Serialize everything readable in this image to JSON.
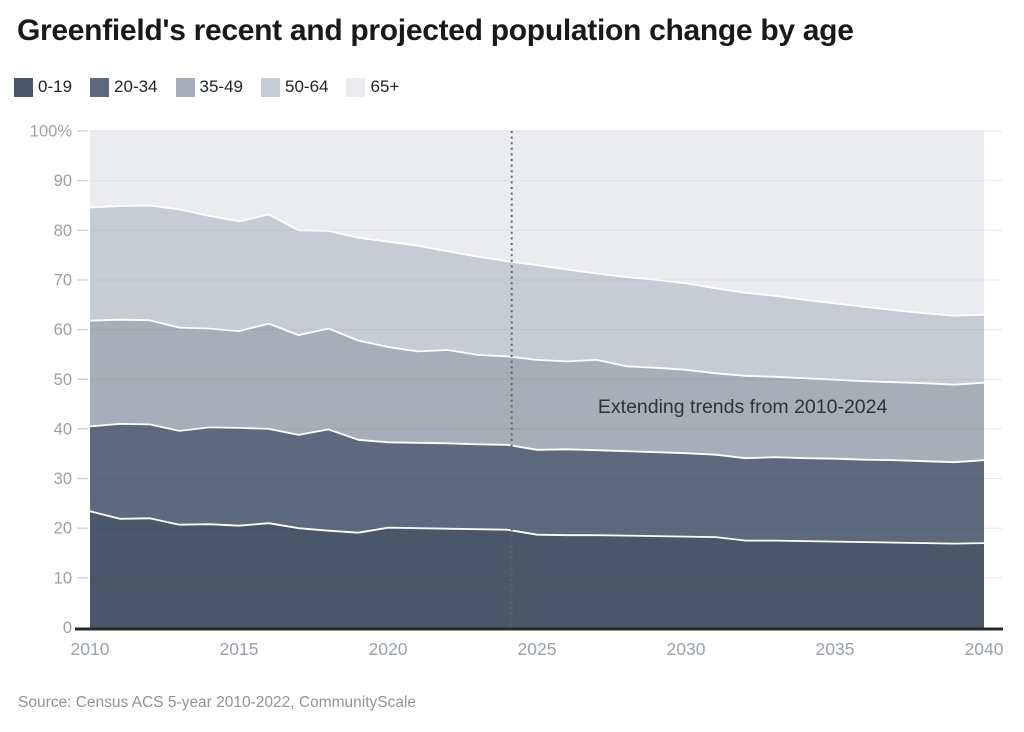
{
  "title": "Greenfield's recent and projected population change by age",
  "source": "Source: Census ACS 5-year 2010-2022, CommunityScale",
  "legend": {
    "items": [
      {
        "label": "0-19",
        "color": "#4a5768"
      },
      {
        "label": "20-34",
        "color": "#5d6a7d"
      },
      {
        "label": "35-49",
        "color": "#a6aeb9"
      },
      {
        "label": "50-64",
        "color": "#c7ccd4"
      },
      {
        "label": "65+",
        "color": "#eaecef"
      }
    ]
  },
  "colors": {
    "axis_line": "#26292d",
    "tick_label": "#9aa1a7",
    "tick_dash": "#d2d5d8",
    "gridline": "#e7e9eb",
    "separator": "#ffffff",
    "divider_line": "#5f6468",
    "annotation_text": "#2f3337"
  },
  "chart_data": {
    "type": "area",
    "stacked": true,
    "unit": "percent_of_population",
    "title": "Greenfield's recent and projected population change by age",
    "xlabel": "",
    "ylabel": "",
    "grid": true,
    "legend_position": "top",
    "ylim": [
      0,
      100
    ],
    "yticks": [
      0,
      10,
      20,
      30,
      40,
      50,
      60,
      70,
      80,
      90,
      100
    ],
    "ytick_top_label": "100%",
    "xticks": [
      2010,
      2015,
      2020,
      2025,
      2030,
      2035,
      2040
    ],
    "x": [
      2010,
      2011,
      2012,
      2013,
      2014,
      2015,
      2016,
      2017,
      2018,
      2019,
      2020,
      2021,
      2022,
      2023,
      2024,
      2025,
      2026,
      2027,
      2028,
      2029,
      2030,
      2031,
      2032,
      2033,
      2034,
      2035,
      2036,
      2037,
      2038,
      2039,
      2040
    ],
    "series": [
      {
        "name": "0-19",
        "color": "#4a5768",
        "values": [
          23.4,
          21.9,
          22.0,
          20.7,
          20.8,
          20.5,
          21.0,
          20.0,
          19.5,
          19.1,
          20.1,
          20.0,
          19.9,
          19.8,
          19.7,
          18.7,
          18.6,
          18.6,
          18.5,
          18.4,
          18.3,
          18.2,
          17.5,
          17.5,
          17.4,
          17.3,
          17.2,
          17.1,
          17.0,
          16.9,
          17.0
        ]
      },
      {
        "name": "20-34",
        "color": "#5d6a7d",
        "values": [
          17.1,
          19.1,
          18.9,
          18.9,
          19.5,
          19.7,
          19.0,
          18.8,
          20.4,
          18.7,
          17.2,
          17.2,
          17.2,
          17.1,
          17.1,
          17.1,
          17.3,
          17.1,
          17.0,
          16.9,
          16.8,
          16.6,
          16.6,
          16.8,
          16.7,
          16.7,
          16.6,
          16.6,
          16.5,
          16.4,
          16.7
        ]
      },
      {
        "name": "35-49",
        "color": "#a6aeb9",
        "values": [
          21.3,
          21.0,
          21.0,
          20.8,
          19.9,
          19.5,
          21.2,
          20.1,
          20.3,
          20.0,
          19.2,
          18.4,
          18.8,
          18.0,
          17.8,
          18.1,
          17.7,
          18.2,
          17.1,
          17.0,
          16.8,
          16.4,
          16.6,
          16.2,
          16.1,
          15.9,
          15.8,
          15.7,
          15.7,
          15.6,
          15.6
        ]
      },
      {
        "name": "50-64",
        "color": "#c7ccd4",
        "values": [
          22.8,
          22.9,
          23.1,
          23.8,
          22.7,
          22.1,
          22.0,
          21.1,
          19.7,
          20.7,
          21.2,
          21.3,
          19.9,
          19.8,
          19.2,
          19.1,
          18.5,
          17.4,
          18.0,
          17.7,
          17.4,
          17.1,
          16.7,
          16.3,
          15.8,
          15.4,
          15.0,
          14.5,
          14.1,
          13.9,
          13.7
        ]
      },
      {
        "name": "65+",
        "color": "#eaecef",
        "values": [
          15.4,
          15.1,
          15.0,
          15.8,
          17.1,
          18.2,
          16.8,
          20.0,
          20.1,
          21.5,
          22.3,
          23.1,
          24.2,
          25.3,
          26.2,
          27.0,
          27.9,
          28.7,
          29.4,
          30.0,
          30.7,
          31.7,
          32.6,
          33.2,
          34.0,
          34.7,
          35.4,
          36.1,
          36.7,
          37.2,
          37.0
        ]
      }
    ],
    "vline": {
      "x": 2024.15,
      "style": "dotted"
    },
    "annotation": {
      "text": "Extending trends from 2010-2024",
      "x": 2031.9,
      "y": 43.2
    }
  }
}
